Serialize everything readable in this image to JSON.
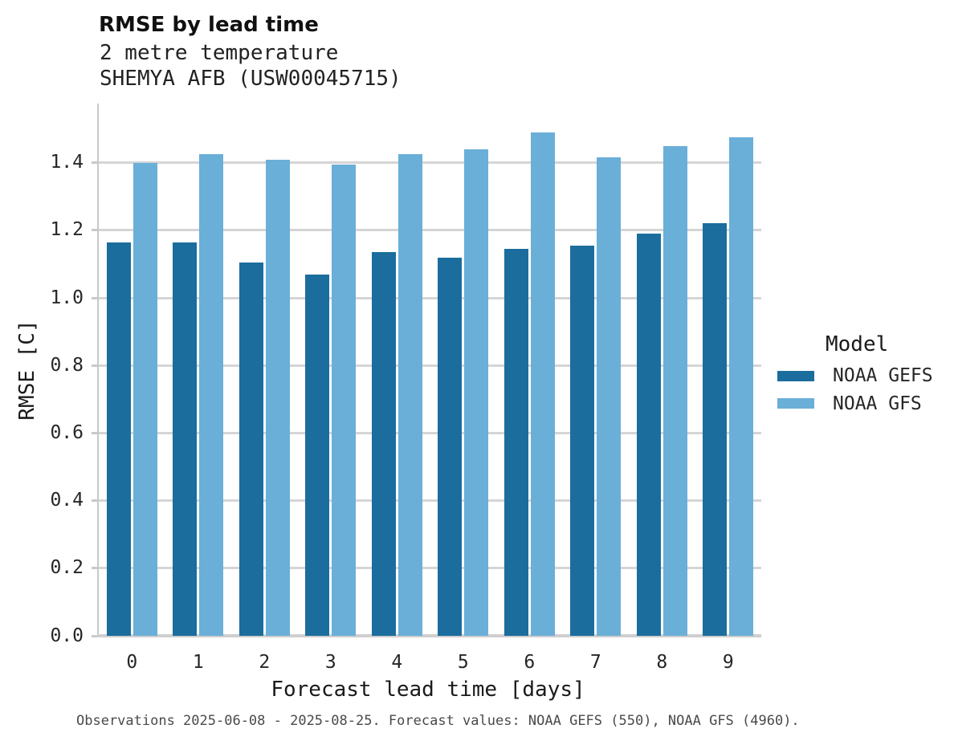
{
  "header": {
    "title": "RMSE by lead time",
    "subtitle_line1": "2 metre temperature",
    "subtitle_line2": "SHEMYA AFB (USW00045715)"
  },
  "chart_data": {
    "type": "bar",
    "title": "RMSE by lead time",
    "subtitle": "2 metre temperature",
    "station": "SHEMYA AFB (USW00045715)",
    "categories": [
      "0",
      "1",
      "2",
      "3",
      "4",
      "5",
      "6",
      "7",
      "8",
      "9"
    ],
    "series": [
      {
        "name": "NOAA GEFS",
        "color": "#1b6d9d",
        "values": [
          1.165,
          1.165,
          1.105,
          1.07,
          1.135,
          1.12,
          1.145,
          1.155,
          1.19,
          1.22
        ]
      },
      {
        "name": "NOAA GFS",
        "color": "#6aafd8",
        "values": [
          1.4,
          1.425,
          1.41,
          1.395,
          1.425,
          1.44,
          1.49,
          1.415,
          1.45,
          1.475
        ]
      }
    ],
    "xlabel": "Forecast lead time [days]",
    "ylabel": "RMSE [C]",
    "ylim": [
      0,
      1.575
    ],
    "yticks": [
      0.0,
      0.2,
      0.4,
      0.6,
      0.8,
      1.0,
      1.2,
      1.4
    ],
    "grid": true,
    "legend_title": "Model",
    "legend_position": "right",
    "grid_color": "#d5d5d5",
    "axis_color": "#c9c9c9"
  },
  "footer": {
    "caption": "Observations 2025-06-08 - 2025-08-25. Forecast values: NOAA GEFS (550), NOAA GFS (4960)."
  }
}
